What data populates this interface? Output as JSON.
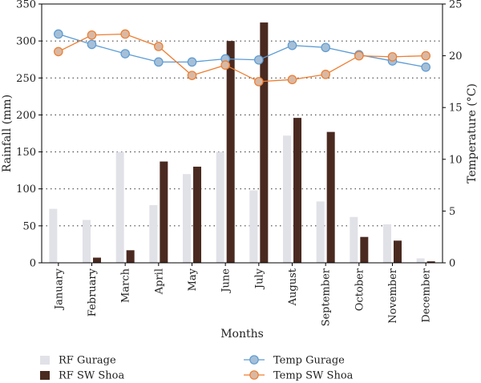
{
  "chart_data": {
    "type": "bar",
    "title": "",
    "xlabel": "Months",
    "ylabel_left": "Rainfall (mm)",
    "ylabel_right": "Temperature (°C)",
    "ylim_left": [
      0,
      350
    ],
    "ylim_right": [
      0,
      25
    ],
    "yticks_left": [
      "0",
      "50",
      "100",
      "150",
      "200",
      "250",
      "300",
      "350"
    ],
    "yticks_right": [
      "0",
      "5",
      "10",
      "15",
      "20",
      "25"
    ],
    "grid": "horizontal dotted",
    "legend_position": "bottom",
    "categories": [
      "January",
      "February",
      "March",
      "April",
      "May",
      "June",
      "July",
      "August",
      "September",
      "October",
      "November",
      "December"
    ],
    "bar_series": [
      {
        "name": "RF Gurage",
        "color": "#e1e1e8",
        "values": [
          73,
          58,
          150,
          78,
          120,
          150,
          98,
          172,
          83,
          62,
          52,
          6
        ]
      },
      {
        "name": "RF SW Shoa",
        "color": "#4a2a20",
        "values": [
          0,
          7,
          17,
          137,
          130,
          300,
          325,
          196,
          177,
          35,
          30,
          2
        ]
      }
    ],
    "line_series": [
      {
        "name": "Temp Gurage",
        "color": "#5b9bd5",
        "marker_fill": "#a6bfd6",
        "values": [
          22.1,
          21.1,
          20.2,
          19.4,
          19.4,
          19.7,
          19.6,
          21.0,
          20.8,
          20.1,
          19.5,
          18.9
        ]
      },
      {
        "name": "Temp SW Shoa",
        "color": "#ed7d31",
        "marker_fill": "#d9b8a3",
        "values": [
          20.4,
          22.0,
          22.1,
          20.9,
          18.1,
          19.1,
          17.5,
          17.7,
          18.2,
          20.0,
          19.9,
          20.0
        ]
      }
    ]
  }
}
